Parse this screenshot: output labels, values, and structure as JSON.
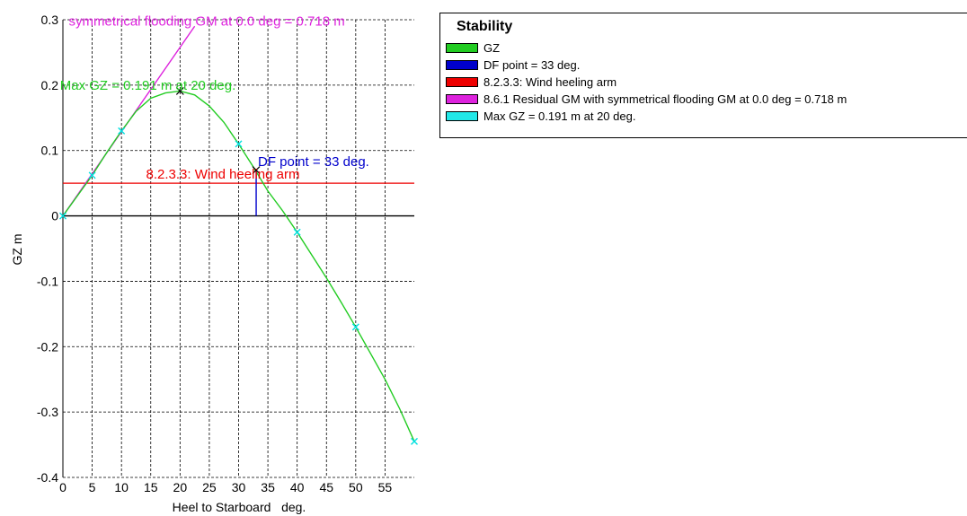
{
  "chart_data": {
    "type": "line",
    "xlabel": "Heel to Starboard   deg.",
    "ylabel": "GZ  m",
    "xlim": [
      0,
      60
    ],
    "ylim": [
      -0.4,
      0.3
    ],
    "x_ticks": [
      0,
      5,
      10,
      15,
      20,
      25,
      30,
      35,
      40,
      45,
      50,
      55
    ],
    "y_ticks": [
      0.3,
      0.2,
      0.1,
      0,
      -0.1,
      -0.2,
      -0.3,
      -0.4
    ],
    "x_tick_labels": [
      "0",
      "5",
      "10",
      "15",
      "20",
      "25",
      "30",
      "35",
      "40",
      "45",
      "50",
      "55"
    ],
    "y_tick_labels": [
      "0.3",
      "0.2",
      "0.1",
      "0",
      "-0.1",
      "-0.2",
      "-0.3",
      "-0.4"
    ],
    "grid": true,
    "series": [
      {
        "name": "GZ",
        "color": "#22cc22",
        "x": [
          0,
          2.5,
          5,
          7.5,
          10,
          12.5,
          15,
          17.5,
          20,
          22.5,
          25,
          27.5,
          30,
          32.5,
          35,
          37.5,
          40,
          42.5,
          45,
          47.5,
          50,
          52.5,
          55,
          57.5,
          60
        ],
        "y": [
          0,
          0.031,
          0.062,
          0.097,
          0.13,
          0.16,
          0.18,
          0.188,
          0.191,
          0.185,
          0.168,
          0.143,
          0.11,
          0.075,
          0.038,
          0.008,
          -0.025,
          -0.06,
          -0.095,
          -0.132,
          -0.17,
          -0.21,
          -0.25,
          -0.295,
          -0.345
        ]
      }
    ],
    "gz_markers": {
      "x": [
        0,
        5,
        10,
        30,
        40,
        50,
        60
      ],
      "y": [
        0,
        0.062,
        0.13,
        0.11,
        -0.025,
        -0.17,
        -0.345
      ],
      "color": "#00e0e0"
    },
    "residual_gm_line": {
      "name": "8.6.1 Residual GM with symmetrical flooding GM at 0.0 deg = 0.718 m",
      "label": "symmetrical flooding GM at 0.0 deg = 0.718 m",
      "color": "#dd22dd",
      "x": [
        0,
        22.5
      ],
      "y": [
        0,
        0.29
      ]
    },
    "wind_heeling_arm": {
      "name": "8.2.3.3: Wind heeling arm",
      "label": "8.2.3.3: Wind heeling arm",
      "color": "#ee0000",
      "y": 0.05
    },
    "df_point": {
      "name": "DF point = 33 deg.",
      "label": "DF point = 33 deg.",
      "color": "#0000cc",
      "x": 33,
      "y": 0.07
    },
    "max_gz": {
      "name": "Max GZ = 0.191 m at 20 deg.",
      "label": "Max GZ = 0.191 m at 20 deg.",
      "color": "#22cc22",
      "x": 20,
      "y": 0.191
    }
  },
  "legend": {
    "title": "Stability",
    "items": [
      {
        "label": "GZ",
        "color": "#22cc22"
      },
      {
        "label": "DF point = 33 deg.",
        "color": "#0000cc"
      },
      {
        "label": "8.2.3.3: Wind heeling arm",
        "color": "#ee0000"
      },
      {
        "label": "8.6.1 Residual GM with symmetrical flooding GM at 0.0 deg = 0.718 m",
        "color": "#dd22dd"
      },
      {
        "label": "Max GZ = 0.191 m at 20 deg.",
        "color": "#22e8e8"
      }
    ]
  }
}
